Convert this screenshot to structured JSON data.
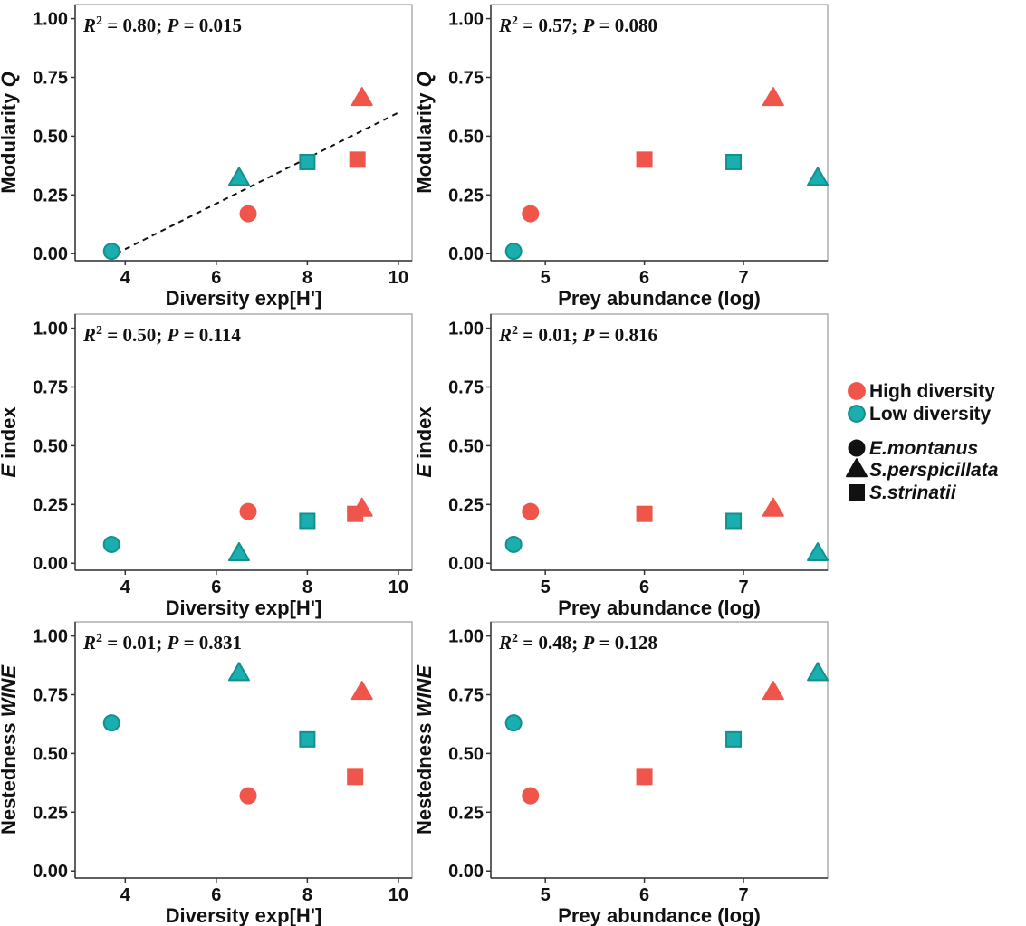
{
  "colors": {
    "high": "#F0554B",
    "low": "#1AAFAE",
    "low_stroke": "#11908F",
    "black": "#111111",
    "panel_border": "#9a9a9a",
    "axis": "#333333"
  },
  "legend": {
    "groups": [
      {
        "key": "high",
        "label": "High diversity"
      },
      {
        "key": "low",
        "label": "Low diversity"
      }
    ],
    "species": [
      {
        "shape": "circle",
        "label": "E.montanus"
      },
      {
        "shape": "triangle",
        "label": "S.perspicillata"
      },
      {
        "shape": "square",
        "label": "S.strinatii"
      }
    ]
  },
  "chart_data": [
    {
      "id": "modularity-diversity",
      "type": "scatter",
      "xlabel": "Diversity exp[H']",
      "ylabel": "Modularity Q",
      "ylabel_parts": [
        "Modularity ",
        "Q"
      ],
      "stat": {
        "r2": "0.80",
        "p": "0.015"
      },
      "xlim": [
        2.9,
        10.3
      ],
      "ylim": [
        -0.03,
        1.06
      ],
      "xticks": [
        4,
        6,
        8,
        10
      ],
      "yticks": [
        "0.00",
        "0.25",
        "0.50",
        "0.75",
        "1.00"
      ],
      "trendline": {
        "x": [
          3.8,
          10
        ],
        "y": [
          0.0,
          0.6
        ]
      },
      "points": [
        {
          "x": 3.7,
          "y": 0.01,
          "shape": "circle",
          "group": "low"
        },
        {
          "x": 6.7,
          "y": 0.17,
          "shape": "circle",
          "group": "high"
        },
        {
          "x": 6.5,
          "y": 0.32,
          "shape": "triangle",
          "group": "low"
        },
        {
          "x": 9.2,
          "y": 0.66,
          "shape": "triangle",
          "group": "high"
        },
        {
          "x": 8.0,
          "y": 0.39,
          "shape": "square",
          "group": "low"
        },
        {
          "x": 9.1,
          "y": 0.4,
          "shape": "square",
          "group": "high"
        }
      ]
    },
    {
      "id": "modularity-abundance",
      "type": "scatter",
      "xlabel": "Prey abundance (log)",
      "ylabel": "Modularity Q",
      "ylabel_parts": [
        "Modularity ",
        "Q"
      ],
      "stat": {
        "r2": "0.57",
        "p": "0.080"
      },
      "xlim": [
        4.45,
        7.85
      ],
      "ylim": [
        -0.03,
        1.06
      ],
      "xticks": [
        5,
        6,
        7
      ],
      "yticks": [
        "0.00",
        "0.25",
        "0.50",
        "0.75",
        "1.00"
      ],
      "points": [
        {
          "x": 4.68,
          "y": 0.01,
          "shape": "circle",
          "group": "low"
        },
        {
          "x": 4.85,
          "y": 0.17,
          "shape": "circle",
          "group": "high"
        },
        {
          "x": 7.75,
          "y": 0.32,
          "shape": "triangle",
          "group": "low"
        },
        {
          "x": 7.3,
          "y": 0.66,
          "shape": "triangle",
          "group": "high"
        },
        {
          "x": 6.9,
          "y": 0.39,
          "shape": "square",
          "group": "low"
        },
        {
          "x": 6.0,
          "y": 0.4,
          "shape": "square",
          "group": "high"
        }
      ]
    },
    {
      "id": "e-index-diversity",
      "type": "scatter",
      "xlabel": "Diversity exp[H']",
      "ylabel": "E index",
      "ylabel_parts": [
        "E",
        " index"
      ],
      "stat": {
        "r2": "0.50",
        "p": "0.114"
      },
      "xlim": [
        2.9,
        10.3
      ],
      "ylim": [
        -0.03,
        1.06
      ],
      "xticks": [
        4,
        6,
        8,
        10
      ],
      "yticks": [
        "0.00",
        "0.25",
        "0.50",
        "0.75",
        "1.00"
      ],
      "points": [
        {
          "x": 3.7,
          "y": 0.08,
          "shape": "circle",
          "group": "low"
        },
        {
          "x": 6.7,
          "y": 0.22,
          "shape": "circle",
          "group": "high"
        },
        {
          "x": 6.5,
          "y": 0.04,
          "shape": "triangle",
          "group": "low"
        },
        {
          "x": 9.2,
          "y": 0.23,
          "shape": "triangle",
          "group": "high"
        },
        {
          "x": 8.0,
          "y": 0.18,
          "shape": "square",
          "group": "low"
        },
        {
          "x": 9.05,
          "y": 0.21,
          "shape": "square",
          "group": "high"
        }
      ]
    },
    {
      "id": "e-index-abundance",
      "type": "scatter",
      "xlabel": "Prey abundance (log)",
      "ylabel": "E index",
      "ylabel_parts": [
        "E",
        " index"
      ],
      "stat": {
        "r2": "0.01",
        "p": "0.816"
      },
      "xlim": [
        4.45,
        7.85
      ],
      "ylim": [
        -0.03,
        1.06
      ],
      "xticks": [
        5,
        6,
        7
      ],
      "yticks": [
        "0.00",
        "0.25",
        "0.50",
        "0.75",
        "1.00"
      ],
      "points": [
        {
          "x": 4.68,
          "y": 0.08,
          "shape": "circle",
          "group": "low"
        },
        {
          "x": 4.85,
          "y": 0.22,
          "shape": "circle",
          "group": "high"
        },
        {
          "x": 7.75,
          "y": 0.04,
          "shape": "triangle",
          "group": "low"
        },
        {
          "x": 7.3,
          "y": 0.23,
          "shape": "triangle",
          "group": "high"
        },
        {
          "x": 6.9,
          "y": 0.18,
          "shape": "square",
          "group": "low"
        },
        {
          "x": 6.0,
          "y": 0.21,
          "shape": "square",
          "group": "high"
        }
      ]
    },
    {
      "id": "nestedness-diversity",
      "type": "scatter",
      "xlabel": "Diversity exp[H']",
      "ylabel": "Nestedness WINE",
      "ylabel_parts": [
        "Nestedness ",
        "WINE"
      ],
      "stat": {
        "r2": "0.01",
        "p": "0.831"
      },
      "xlim": [
        2.9,
        10.3
      ],
      "ylim": [
        -0.03,
        1.06
      ],
      "xticks": [
        4,
        6,
        8,
        10
      ],
      "yticks": [
        "0.00",
        "0.25",
        "0.50",
        "0.75",
        "1.00"
      ],
      "points": [
        {
          "x": 3.7,
          "y": 0.63,
          "shape": "circle",
          "group": "low"
        },
        {
          "x": 6.7,
          "y": 0.32,
          "shape": "circle",
          "group": "high"
        },
        {
          "x": 6.5,
          "y": 0.84,
          "shape": "triangle",
          "group": "low"
        },
        {
          "x": 9.2,
          "y": 0.76,
          "shape": "triangle",
          "group": "high"
        },
        {
          "x": 8.0,
          "y": 0.56,
          "shape": "square",
          "group": "low"
        },
        {
          "x": 9.05,
          "y": 0.4,
          "shape": "square",
          "group": "high"
        }
      ]
    },
    {
      "id": "nestedness-abundance",
      "type": "scatter",
      "xlabel": "Prey abundance (log)",
      "ylabel": "Nestedness WINE",
      "ylabel_parts": [
        "Nestedness ",
        "WINE"
      ],
      "stat": {
        "r2": "0.48",
        "p": "0.128"
      },
      "xlim": [
        4.45,
        7.85
      ],
      "ylim": [
        -0.03,
        1.06
      ],
      "xticks": [
        5,
        6,
        7
      ],
      "yticks": [
        "0.00",
        "0.25",
        "0.50",
        "0.75",
        "1.00"
      ],
      "points": [
        {
          "x": 4.68,
          "y": 0.63,
          "shape": "circle",
          "group": "low"
        },
        {
          "x": 4.85,
          "y": 0.32,
          "shape": "circle",
          "group": "high"
        },
        {
          "x": 7.75,
          "y": 0.84,
          "shape": "triangle",
          "group": "low"
        },
        {
          "x": 7.3,
          "y": 0.76,
          "shape": "triangle",
          "group": "high"
        },
        {
          "x": 6.9,
          "y": 0.56,
          "shape": "square",
          "group": "low"
        },
        {
          "x": 6.0,
          "y": 0.4,
          "shape": "square",
          "group": "high"
        }
      ]
    }
  ]
}
